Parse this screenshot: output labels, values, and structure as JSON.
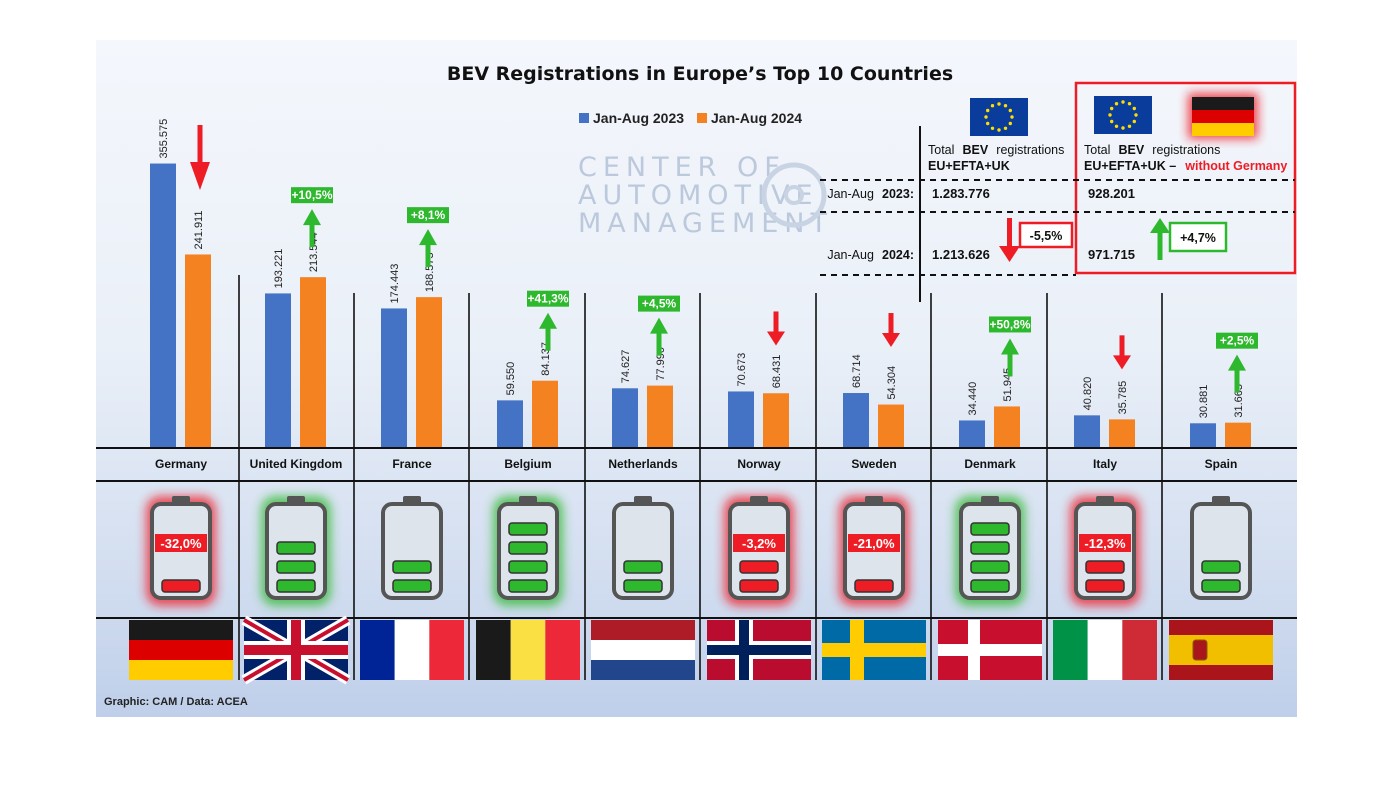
{
  "chart_data": {
    "type": "bar",
    "title": "BEV Registrations in Europe’s Top 10 Countries",
    "categories": [
      "Germany",
      "United Kingdom",
      "France",
      "Belgium",
      "Netherlands",
      "Norway",
      "Sweden",
      "Denmark",
      "Italy",
      "Spain"
    ],
    "series": [
      {
        "name": "Jan-Aug 2023",
        "color": "#4472c4",
        "values": [
          355575,
          193221,
          174443,
          59550,
          74627,
          70673,
          68714,
          34440,
          40820,
          30881
        ],
        "labels": [
          "355.575",
          "193.221",
          "174.443",
          "59.550",
          "74.627",
          "70.673",
          "68.714",
          "34.440",
          "40.820",
          "30.881"
        ]
      },
      {
        "name": "Jan-Aug 2024",
        "color": "#f58220",
        "values": [
          241911,
          213544,
          188575,
          84137,
          77990,
          68431,
          54304,
          51945,
          35785,
          31665
        ],
        "labels": [
          "241.911",
          "213.544",
          "188.575",
          "84.137",
          "77.990",
          "68.431",
          "54.304",
          "51.945",
          "35.785",
          "31.665"
        ]
      }
    ],
    "changes": [
      "-32,0%",
      "+10,5%",
      "+8,1%",
      "+41,3%",
      "+4,5%",
      "-3,2%",
      "-21,0%",
      "+50,8%",
      "-12,3%",
      "+2,5%"
    ],
    "direction": [
      "down",
      "up",
      "up",
      "up",
      "up",
      "down",
      "down",
      "up",
      "down",
      "up"
    ],
    "battery_level": [
      1,
      3,
      2,
      4,
      2,
      2,
      1,
      4,
      2,
      2
    ],
    "ylim": [
      0,
      360000
    ],
    "grid": false,
    "legend_position": "top-center"
  },
  "watermark": {
    "line1": "CENTER OF",
    "line2": "AUTOMOTIVE",
    "line3": "MANAGEMENT"
  },
  "summary": {
    "left_heading_1": "Total",
    "left_heading_bold": "BEV",
    "left_heading_2": "registrations",
    "left_subheading": "EU+EFTA+UK",
    "right_heading_1": "Total",
    "right_heading_bold": "BEV",
    "right_heading_2": "registrations",
    "right_subheading": "EU+EFTA+UK –",
    "right_subheading_red": "without Germany",
    "row1_label": "Jan-Aug",
    "row1_year": "2023:",
    "row2_label": "Jan-Aug",
    "row2_year": "2024:",
    "total_2023": "1.283.776",
    "total_2024": "1.213.626",
    "total_change": "-5,5%",
    "exde_2023": "928.201",
    "exde_2024": "971.715",
    "exde_change": "+4,7%"
  },
  "source": "Graphic: CAM / Data: ACEA",
  "colors": {
    "blue": "#4472c4",
    "orange": "#f58220",
    "green": "#2eb82e",
    "red": "#ee1c25"
  }
}
